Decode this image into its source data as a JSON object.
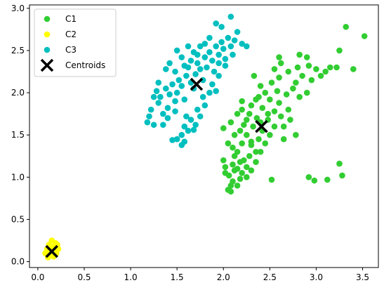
{
  "chart_data": {
    "type": "scatter",
    "title": "",
    "xlabel": "",
    "ylabel": "",
    "xlim": [
      -0.09,
      3.67
    ],
    "ylim": [
      -0.07,
      3.04
    ],
    "xticks": [
      0.0,
      0.5,
      1.0,
      1.5,
      2.0,
      2.5,
      3.0,
      3.5
    ],
    "xtick_labels": [
      "0.0",
      "0.5",
      "1.0",
      "1.5",
      "2.0",
      "2.5",
      "3.0",
      "3.5"
    ],
    "yticks": [
      0.0,
      0.5,
      1.0,
      1.5,
      2.0,
      2.5,
      3.0
    ],
    "ytick_labels": [
      "0.0",
      "0.5",
      "1.0",
      "1.5",
      "2.0",
      "2.5",
      "3.0"
    ],
    "grid": false,
    "legend_position": "top-left",
    "series": [
      {
        "name": "C1",
        "color": "#32cd32",
        "points": [
          [
            2.05,
            0.85
          ],
          [
            2.08,
            0.9
          ],
          [
            2.1,
            0.95
          ],
          [
            2.06,
            1.02
          ],
          [
            2.12,
            1.08
          ],
          [
            2.02,
            1.12
          ],
          [
            2.1,
            1.15
          ],
          [
            2.15,
            1.1
          ],
          [
            2.2,
            1.05
          ],
          [
            2.18,
            0.98
          ],
          [
            2.25,
            1.0
          ],
          [
            2.3,
            1.08
          ],
          [
            2.22,
            1.2
          ],
          [
            2.28,
            1.25
          ],
          [
            2.35,
            1.18
          ],
          [
            2.4,
            1.3
          ],
          [
            2.15,
            1.3
          ],
          [
            2.1,
            1.35
          ],
          [
            2.2,
            1.4
          ],
          [
            2.3,
            1.38
          ],
          [
            2.38,
            1.45
          ],
          [
            2.45,
            1.4
          ],
          [
            2.5,
            1.5
          ],
          [
            2.25,
            1.5
          ],
          [
            2.18,
            1.55
          ],
          [
            2.32,
            1.6
          ],
          [
            2.42,
            1.55
          ],
          [
            2.55,
            1.6
          ],
          [
            2.48,
            1.68
          ],
          [
            2.36,
            1.7
          ],
          [
            2.28,
            1.75
          ],
          [
            2.2,
            1.8
          ],
          [
            2.3,
            1.85
          ],
          [
            2.42,
            1.82
          ],
          [
            2.55,
            1.78
          ],
          [
            2.62,
            1.72
          ],
          [
            2.7,
            1.8
          ],
          [
            2.6,
            1.88
          ],
          [
            2.5,
            1.92
          ],
          [
            2.38,
            1.95
          ],
          [
            2.45,
            2.0
          ],
          [
            2.58,
            2.02
          ],
          [
            2.68,
            1.98
          ],
          [
            2.75,
            2.05
          ],
          [
            2.82,
            1.95
          ],
          [
            2.9,
            2.0
          ],
          [
            2.78,
            2.12
          ],
          [
            2.85,
            2.2
          ],
          [
            2.95,
            2.15
          ],
          [
            3.05,
            2.2
          ],
          [
            3.0,
            2.28
          ],
          [
            3.1,
            2.25
          ],
          [
            2.92,
            2.32
          ],
          [
            2.8,
            2.3
          ],
          [
            2.7,
            2.25
          ],
          [
            2.6,
            2.18
          ],
          [
            2.52,
            2.12
          ],
          [
            2.4,
            2.08
          ],
          [
            2.33,
            2.2
          ],
          [
            2.62,
            2.35
          ],
          [
            2.55,
            2.28
          ],
          [
            2.9,
            2.42
          ],
          [
            2.82,
            2.45
          ],
          [
            3.15,
            2.3
          ],
          [
            3.22,
            2.3
          ],
          [
            3.25,
            2.5
          ],
          [
            3.32,
            2.78
          ],
          [
            3.4,
            2.28
          ],
          [
            3.52,
            2.67
          ],
          [
            2.0,
            1.58
          ],
          [
            2.05,
            1.4
          ],
          [
            2.0,
            1.2
          ],
          [
            2.12,
            1.25
          ],
          [
            2.15,
            0.9
          ],
          [
            2.08,
            0.83
          ],
          [
            2.25,
            1.68
          ],
          [
            2.12,
            1.5
          ],
          [
            2.35,
            1.92
          ],
          [
            2.22,
            1.62
          ],
          [
            2.02,
            1.05
          ],
          [
            2.48,
            1.75
          ],
          [
            2.65,
            1.6
          ],
          [
            2.72,
            1.68
          ],
          [
            2.78,
            1.5
          ],
          [
            2.65,
            1.45
          ],
          [
            2.35,
            1.3
          ],
          [
            2.18,
            1.18
          ],
          [
            2.4,
            1.65
          ],
          [
            2.3,
            1.42
          ],
          [
            2.25,
            1.12
          ],
          [
            2.92,
            1.0
          ],
          [
            2.98,
            0.96
          ],
          [
            3.12,
            0.97
          ],
          [
            3.25,
            1.16
          ],
          [
            3.28,
            1.02
          ],
          [
            2.52,
            0.97
          ],
          [
            2.6,
            2.42
          ],
          [
            2.2,
            1.9
          ],
          [
            2.15,
            1.75
          ],
          [
            2.08,
            1.65
          ]
        ]
      },
      {
        "name": "C2",
        "color": "#ffff00",
        "points": [
          [
            0.08,
            0.1
          ],
          [
            0.1,
            0.15
          ],
          [
            0.12,
            0.2
          ],
          [
            0.14,
            0.08
          ],
          [
            0.16,
            0.12
          ],
          [
            0.18,
            0.18
          ],
          [
            0.2,
            0.1
          ],
          [
            0.22,
            0.15
          ],
          [
            0.15,
            0.25
          ],
          [
            0.19,
            0.22
          ],
          [
            0.11,
            0.05
          ],
          [
            0.17,
            0.06
          ],
          [
            0.13,
            0.14
          ],
          [
            0.21,
            0.2
          ],
          [
            0.16,
            0.17
          ],
          [
            0.12,
            0.1
          ],
          [
            0.18,
            0.13
          ]
        ]
      },
      {
        "name": "C3",
        "color": "#00bfbf",
        "points": [
          [
            1.18,
            1.65
          ],
          [
            1.2,
            1.72
          ],
          [
            1.22,
            1.8
          ],
          [
            1.25,
            1.62
          ],
          [
            1.3,
            1.88
          ],
          [
            1.35,
            1.75
          ],
          [
            1.32,
            1.95
          ],
          [
            1.38,
            2.05
          ],
          [
            1.42,
            1.98
          ],
          [
            1.4,
            1.82
          ],
          [
            1.45,
            2.1
          ],
          [
            1.48,
            1.9
          ],
          [
            1.5,
            2.0
          ],
          [
            1.52,
            2.15
          ],
          [
            1.55,
            2.08
          ],
          [
            1.58,
            1.92
          ],
          [
            1.6,
            2.2
          ],
          [
            1.62,
            2.3
          ],
          [
            1.65,
            2.12
          ],
          [
            1.68,
            2.05
          ],
          [
            1.7,
            2.22
          ],
          [
            1.72,
            2.35
          ],
          [
            1.75,
            2.28
          ],
          [
            1.78,
            2.15
          ],
          [
            1.8,
            2.42
          ],
          [
            1.82,
            2.3
          ],
          [
            1.85,
            2.48
          ],
          [
            1.88,
            2.38
          ],
          [
            1.9,
            2.25
          ],
          [
            1.92,
            2.55
          ],
          [
            1.95,
            2.45
          ],
          [
            1.98,
            2.6
          ],
          [
            2.0,
            2.52
          ],
          [
            2.02,
            2.4
          ],
          [
            2.05,
            2.65
          ],
          [
            2.08,
            2.55
          ],
          [
            2.1,
            2.45
          ],
          [
            2.12,
            2.62
          ],
          [
            2.15,
            2.72
          ],
          [
            1.98,
            2.78
          ],
          [
            1.92,
            2.82
          ],
          [
            1.85,
            2.65
          ],
          [
            2.2,
            2.58
          ],
          [
            2.25,
            2.55
          ],
          [
            1.48,
            2.25
          ],
          [
            1.42,
            2.35
          ],
          [
            1.38,
            2.28
          ],
          [
            1.55,
            2.42
          ],
          [
            1.5,
            2.5
          ],
          [
            1.62,
            2.55
          ],
          [
            1.68,
            2.48
          ],
          [
            1.6,
            1.72
          ],
          [
            1.58,
            1.6
          ],
          [
            1.62,
            1.55
          ],
          [
            1.55,
            1.5
          ],
          [
            1.65,
            1.68
          ],
          [
            1.7,
            1.62
          ],
          [
            1.72,
            1.8
          ],
          [
            1.78,
            1.95
          ],
          [
            1.8,
            1.85
          ],
          [
            1.88,
            2.1
          ],
          [
            1.92,
            2.02
          ],
          [
            1.95,
            2.2
          ],
          [
            1.85,
            2.0
          ],
          [
            1.75,
            1.72
          ],
          [
            1.5,
            1.45
          ],
          [
            1.45,
            1.44
          ],
          [
            1.55,
            1.38
          ],
          [
            1.58,
            1.42
          ],
          [
            1.68,
            1.56
          ],
          [
            1.3,
            2.12
          ],
          [
            1.28,
            2.02
          ],
          [
            1.25,
            1.95
          ],
          [
            1.35,
            1.62
          ],
          [
            1.4,
            1.7
          ],
          [
            1.48,
            1.78
          ],
          [
            2.08,
            2.9
          ],
          [
            2.02,
            2.32
          ],
          [
            1.95,
            2.35
          ],
          [
            1.65,
            2.38
          ],
          [
            1.58,
            2.32
          ],
          [
            1.72,
            2.45
          ],
          [
            1.75,
            2.55
          ],
          [
            1.8,
            2.58
          ]
        ]
      },
      {
        "name": "Centroids",
        "color": "#000000",
        "marker": "x",
        "points": [
          [
            1.71,
            2.1
          ],
          [
            2.41,
            1.6
          ],
          [
            0.15,
            0.12
          ]
        ]
      }
    ]
  }
}
